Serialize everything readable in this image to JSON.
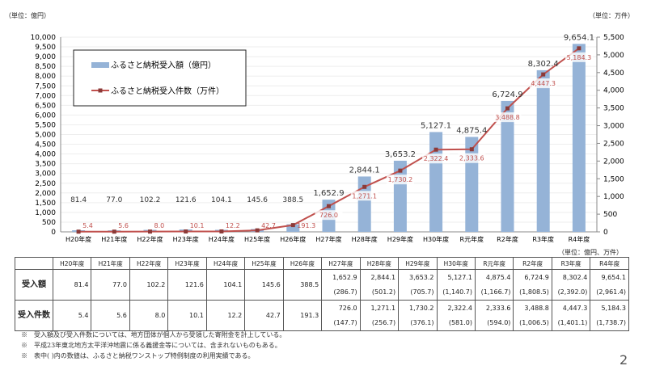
{
  "chart_data": {
    "type": "bar+line",
    "categories": [
      "H20年度",
      "H21年度",
      "H22年度",
      "H23年度",
      "H24年度",
      "H25年度",
      "H26年度",
      "H27年度",
      "H28年度",
      "H29年度",
      "H30年度",
      "R元年度",
      "R2年度",
      "R3年度",
      "R4年度"
    ],
    "series": [
      {
        "name": "ふるさと納税受入額（億円）",
        "type": "bar",
        "axis": "left",
        "color": "#95B3D7",
        "values": [
          81.4,
          77.0,
          102.2,
          121.6,
          104.1,
          145.6,
          388.5,
          1652.9,
          2844.1,
          3653.2,
          5127.1,
          4875.4,
          6724.9,
          8302.4,
          9654.1
        ],
        "labels": [
          "81.4",
          "77.0",
          "102.2",
          "121.6",
          "104.1",
          "145.6",
          "388.5",
          "1,652.9",
          "2,844.1",
          "3,653.2",
          "5,127.1",
          "4,875.4",
          "6,724.9",
          "8,302.4",
          "9,654.1"
        ]
      },
      {
        "name": "ふるさと納税受入件数（万件）",
        "type": "line",
        "axis": "right",
        "color": "#C0504D",
        "values": [
          5.4,
          5.6,
          8.0,
          10.1,
          12.2,
          42.7,
          191.3,
          726.0,
          1271.1,
          1730.2,
          2322.4,
          2333.6,
          3488.8,
          4447.3,
          5184.3
        ],
        "labels": [
          "5.4",
          "5.6",
          "8.0",
          "10.1",
          "12.2",
          "42.7",
          "191.3",
          "726.0",
          "1,271.1",
          "1,730.2",
          "2,322.4",
          "2,333.6",
          "3,488.8",
          "4,447.3",
          "5,184.3"
        ]
      }
    ],
    "ylim_left": [
      0,
      10000
    ],
    "ylim_right": [
      0,
      5500
    ],
    "left_ticks": [
      "0",
      "500",
      "1,000",
      "1,500",
      "2,000",
      "2,500",
      "3,000",
      "3,500",
      "4,000",
      "4,500",
      "5,000",
      "5,500",
      "6,000",
      "6,500",
      "7,000",
      "7,500",
      "8,000",
      "8,500",
      "9,000",
      "9,500",
      "10,000"
    ],
    "right_ticks": [
      "0",
      "500",
      "1,000",
      "1,500",
      "2,000",
      "2,500",
      "3,000",
      "3,500",
      "4,000",
      "4,500",
      "5,000",
      "5,500"
    ],
    "ylabel_left": "（単位：億円）",
    "ylabel_right": "（単位：万件）",
    "legend_position": "top-left"
  },
  "table": {
    "unit": "（単位：億円、万件）",
    "headers": [
      "H20年度",
      "H21年度",
      "H22年度",
      "H23年度",
      "H24年度",
      "H25年度",
      "H26年度",
      "H27年度",
      "H28年度",
      "H29年度",
      "H30年度",
      "R元年度",
      "R2年度",
      "R3年度",
      "R4年度"
    ],
    "rows": [
      {
        "label": "受入額",
        "values": [
          "81.4",
          "77.0",
          "102.2",
          "121.6",
          "104.1",
          "145.6",
          "388.5",
          "1,652.9",
          "2,844.1",
          "3,653.2",
          "5,127.1",
          "4,875.4",
          "6,724.9",
          "8,302.4",
          "9,654.1"
        ],
        "sub": [
          "",
          "",
          "",
          "",
          "",
          "",
          "",
          "(286.7)",
          "(501.2)",
          "(705.7)",
          "(1,140.7)",
          "(1,166.7)",
          "(1,808.5)",
          "(2,392.0)",
          "(2,961.4)"
        ]
      },
      {
        "label": "受入件数",
        "values": [
          "5.4",
          "5.6",
          "8.0",
          "10.1",
          "12.2",
          "42.7",
          "191.3",
          "726.0",
          "1,271.1",
          "1,730.2",
          "2,322.4",
          "2,333.6",
          "3,488.8",
          "4,447.3",
          "5,184.3"
        ],
        "sub": [
          "",
          "",
          "",
          "",
          "",
          "",
          "",
          "(147.7)",
          "(256.7)",
          "(376.1)",
          "(581.0)",
          "(594.0)",
          "(1,006.5)",
          "(1,401.1)",
          "(1,738.7)"
        ]
      }
    ]
  },
  "notes": [
    "※　受入額及び受入件数については、地方団体が個人から受領した寄附金を計上している。",
    "※　平成23年東北地方太平洋沖地震に係る義援金等については、含まれないものもある。",
    "※　表中( )内の数値は、ふるさと納税ワンストップ特例制度の利用実績である。"
  ],
  "page_number": "2"
}
